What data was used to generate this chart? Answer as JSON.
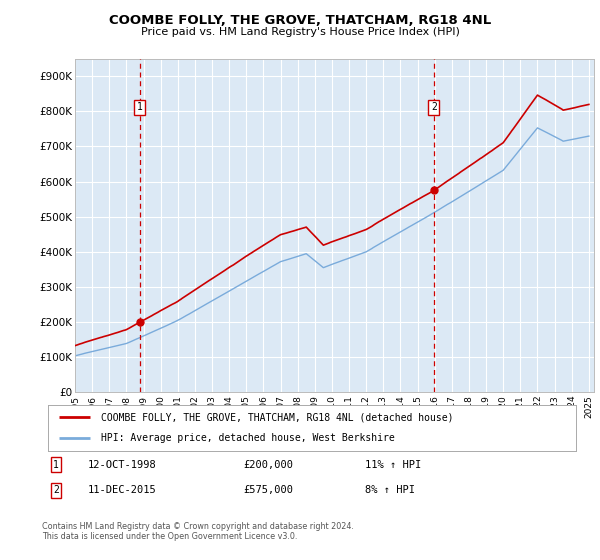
{
  "title": "COOMBE FOLLY, THE GROVE, THATCHAM, RG18 4NL",
  "subtitle": "Price paid vs. HM Land Registry's House Price Index (HPI)",
  "ylim": [
    0,
    950000
  ],
  "yticks": [
    0,
    100000,
    200000,
    300000,
    400000,
    500000,
    600000,
    700000,
    800000,
    900000
  ],
  "ytick_labels": [
    "£0",
    "£100K",
    "£200K",
    "£300K",
    "£400K",
    "£500K",
    "£600K",
    "£700K",
    "£800K",
    "£900K"
  ],
  "background_color": "#dce9f5",
  "grid_color": "#ffffff",
  "sale1_date": "12-OCT-1998",
  "sale1_price": 200000,
  "sale1_hpi": "11% ↑ HPI",
  "sale1_year": 1998.78,
  "sale2_date": "11-DEC-2015",
  "sale2_price": 575000,
  "sale2_hpi": "8% ↑ HPI",
  "sale2_year": 2015.95,
  "legend_label1": "COOMBE FOLLY, THE GROVE, THATCHAM, RG18 4NL (detached house)",
  "legend_label2": "HPI: Average price, detached house, West Berkshire",
  "footer": "Contains HM Land Registry data © Crown copyright and database right 2024.\nThis data is licensed under the Open Government Licence v3.0.",
  "line1_color": "#cc0000",
  "line2_color": "#7aabdb",
  "vline_color": "#cc0000",
  "marker_color": "#cc0000",
  "box_edge_color": "#cc0000"
}
